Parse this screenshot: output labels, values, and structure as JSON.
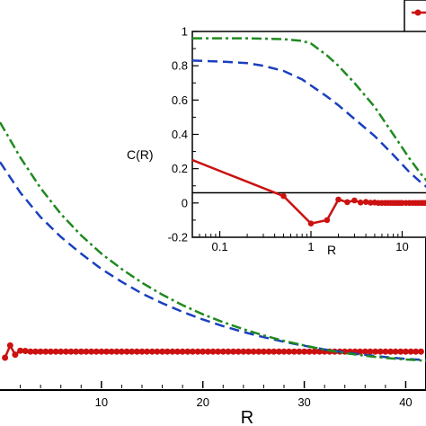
{
  "chart_data": [
    {
      "type": "line",
      "panel": "main",
      "xlabel": "R",
      "ylabel": "",
      "xlim": [
        0,
        42
      ],
      "ylim": [
        -0.12,
        1.15
      ],
      "x_ticks": [
        10,
        20,
        30,
        40
      ],
      "x_tick_labels": [
        "10",
        "20",
        "30",
        "40"
      ],
      "grid": false,
      "series": [
        {
          "line": "solid-with-markers",
          "color": "#cc1111",
          "x": [
            0.5,
            1,
            1.5,
            2,
            2.5,
            3,
            3.5,
            4,
            4.5,
            5,
            5.5,
            6,
            6.5,
            7,
            7.5,
            8,
            8.5,
            9,
            9.5,
            10,
            10.5,
            11,
            11.5,
            12,
            12.5,
            13,
            13.5,
            14,
            14.5,
            15,
            15.5,
            16,
            16.5,
            17,
            17.5,
            18,
            18.5,
            19,
            19.5,
            20,
            20.5,
            21,
            21.5,
            22,
            22.5,
            23,
            23.5,
            24,
            24.5,
            25,
            25.5,
            26,
            26.5,
            27,
            27.5,
            28,
            28.5,
            29,
            29.5,
            30,
            30.5,
            31,
            31.5,
            32,
            32.5,
            33,
            33.5,
            34,
            34.5,
            35,
            35.5,
            36,
            36.5,
            37,
            37.5,
            38,
            38.5,
            39,
            39.5,
            40,
            40.5,
            41,
            41.5
          ],
          "y": [
            -0.02,
            0.02,
            -0.01,
            0.003,
            0.002,
            0,
            0,
            0,
            0,
            0,
            0,
            0,
            0,
            0,
            0,
            0,
            0,
            0,
            0,
            0,
            0,
            0,
            0,
            0,
            0,
            0,
            0,
            0,
            0,
            0,
            0,
            0,
            0,
            0,
            0,
            0,
            0,
            0,
            0,
            0,
            0,
            0,
            0,
            0,
            0,
            0,
            0,
            0,
            0,
            0,
            0,
            0,
            0,
            0,
            0,
            0,
            0,
            0,
            0,
            0,
            0,
            0,
            0,
            0,
            0,
            0,
            0,
            0,
            0,
            0,
            0,
            0,
            0,
            0,
            0,
            0,
            0,
            0,
            0,
            0,
            0,
            0,
            0
          ]
        },
        {
          "line": "dashed",
          "color": "#1a3fbf",
          "x": [
            0,
            2,
            4,
            6,
            8,
            10,
            12,
            14,
            16,
            18,
            20,
            22,
            24,
            26,
            28,
            30,
            32,
            34,
            36,
            38,
            40,
            42
          ],
          "y": [
            0.62,
            0.52,
            0.44,
            0.375,
            0.32,
            0.27,
            0.228,
            0.19,
            0.158,
            0.13,
            0.105,
            0.083,
            0.064,
            0.047,
            0.032,
            0.019,
            0.007,
            -0.003,
            -0.011,
            -0.018,
            -0.024,
            -0.028
          ]
        },
        {
          "line": "dash-dot",
          "color": "#1f8a1f",
          "x": [
            0,
            2,
            4,
            6,
            8,
            10,
            12,
            14,
            16,
            18,
            20,
            22,
            24,
            26,
            28,
            30,
            32,
            34,
            36,
            38,
            40,
            42
          ],
          "y": [
            0.75,
            0.635,
            0.535,
            0.45,
            0.38,
            0.32,
            0.27,
            0.225,
            0.186,
            0.152,
            0.122,
            0.096,
            0.073,
            0.053,
            0.035,
            0.02,
            0.006,
            -0.005,
            -0.014,
            -0.021,
            -0.026,
            -0.03
          ]
        }
      ]
    },
    {
      "type": "line",
      "panel": "inset",
      "xlabel": "R",
      "ylabel": "C(R)",
      "xscale": "log",
      "xlim": [
        0.05,
        20
      ],
      "ylim": [
        -0.2,
        1
      ],
      "x_ticks": [
        0.1,
        1,
        10
      ],
      "x_tick_labels": [
        "0.1",
        "1",
        "10"
      ],
      "y_ticks": [
        -0.2,
        0,
        0.2,
        0.4,
        0.6,
        0.8,
        1
      ],
      "y_tick_labels": [
        "-0.2",
        "0",
        "0.2",
        "0.4",
        "0.6",
        "0.8",
        "1"
      ],
      "zero_line": true,
      "grid": false,
      "series": [
        {
          "line": "solid-with-markers",
          "color": "#cc1111",
          "x": [
            0.05,
            0.5,
            1,
            1.5,
            2,
            2.5,
            3,
            3.5,
            4,
            4.5,
            5,
            5.5,
            6,
            6.5,
            7,
            7.5,
            8,
            8.5,
            9,
            9.5,
            10,
            11,
            12,
            13,
            14,
            15,
            16,
            17,
            18,
            19,
            20
          ],
          "x_markers": [
            0.5,
            1,
            1.5,
            2,
            2.5,
            3,
            3.5,
            4,
            4.5,
            5,
            5.5,
            6,
            6.5,
            7,
            7.5,
            8,
            8.5,
            9,
            9.5,
            10,
            11,
            12,
            13,
            14,
            15,
            16,
            17,
            18,
            19,
            20
          ],
          "y": [
            0.25,
            0.04,
            -0.12,
            -0.1,
            0.02,
            0.005,
            0.015,
            0.003,
            0.006,
            0.002,
            0.003,
            0,
            0,
            0,
            0,
            0,
            0,
            0,
            0,
            0,
            0,
            0,
            0,
            0,
            0,
            0,
            0,
            0,
            0,
            0,
            0
          ]
        },
        {
          "line": "dashed",
          "color": "#1a3fbf",
          "x": [
            0.05,
            0.1,
            0.2,
            0.3,
            0.5,
            0.8,
            1,
            1.5,
            2,
            3,
            5,
            8,
            12,
            16,
            20
          ],
          "y": [
            0.83,
            0.825,
            0.815,
            0.8,
            0.77,
            0.72,
            0.685,
            0.62,
            0.57,
            0.49,
            0.39,
            0.28,
            0.18,
            0.12,
            0.08
          ]
        },
        {
          "line": "dash-dot",
          "color": "#1f8a1f",
          "x": [
            0.05,
            0.1,
            0.2,
            0.3,
            0.5,
            0.8,
            1,
            1.5,
            2,
            3,
            5,
            8,
            12,
            16,
            20
          ],
          "y": [
            0.96,
            0.96,
            0.96,
            0.958,
            0.955,
            0.945,
            0.93,
            0.86,
            0.8,
            0.7,
            0.56,
            0.4,
            0.26,
            0.17,
            0.11
          ]
        }
      ]
    }
  ]
}
